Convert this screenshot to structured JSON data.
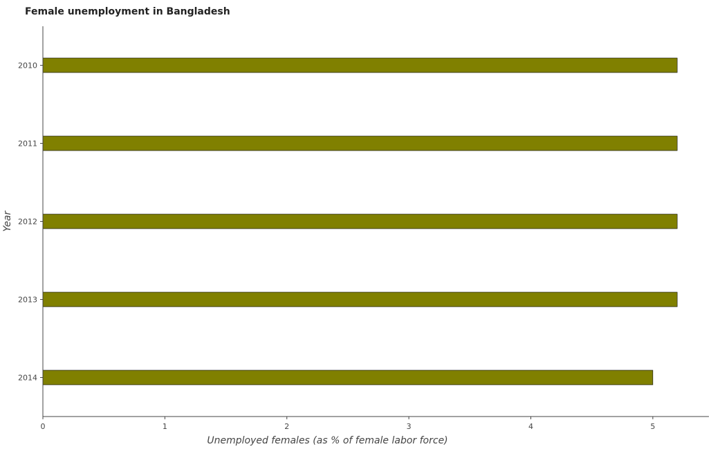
{
  "chart_data": {
    "type": "bar",
    "orientation": "horizontal",
    "title": "Female unemployment in Bangladesh",
    "xlabel": "Unemployed females (as % of female labor force)",
    "ylabel": "Year",
    "categories": [
      "2010",
      "2011",
      "2012",
      "2013",
      "2014"
    ],
    "values": [
      5.2,
      5.2,
      5.2,
      5.2,
      5.0
    ],
    "xlim": [
      0,
      5.46
    ],
    "xticks": [
      0,
      1,
      2,
      3,
      4,
      5
    ],
    "xtick_labels": [
      "0",
      "1",
      "2",
      "3",
      "4",
      "5"
    ],
    "grid": false,
    "bar_color": "#808000",
    "bar_edge_color": "#000000"
  }
}
